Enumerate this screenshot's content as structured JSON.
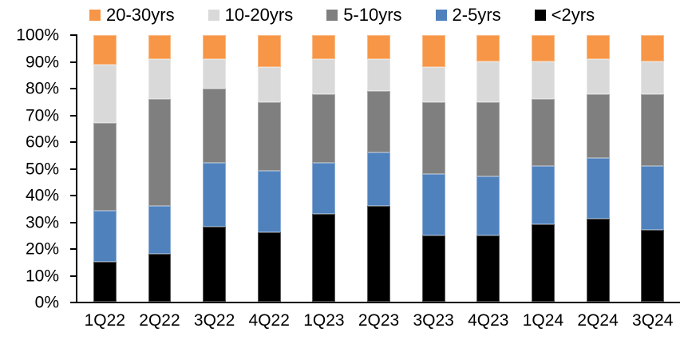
{
  "chart_data": {
    "type": "bar",
    "variant": "stacked-100-percent-column",
    "title": "",
    "xlabel": "",
    "ylabel": "",
    "grid": "off",
    "units": "percent",
    "categories": [
      "1Q22",
      "2Q22",
      "3Q22",
      "4Q22",
      "1Q23",
      "2Q23",
      "3Q23",
      "4Q23",
      "1Q24",
      "2Q24",
      "3Q24"
    ],
    "series": [
      {
        "name": "<2yrs",
        "color": "#000000",
        "values": [
          15,
          18,
          28,
          26,
          33,
          36,
          25,
          25,
          29,
          31,
          27
        ]
      },
      {
        "name": "2-5yrs",
        "color": "#4F81BD",
        "values": [
          19,
          18,
          24,
          23,
          19,
          20,
          23,
          22,
          22,
          23,
          24
        ]
      },
      {
        "name": "5-10yrs",
        "color": "#7F7F7F",
        "values": [
          33,
          40,
          28,
          26,
          26,
          23,
          27,
          28,
          25,
          24,
          27
        ]
      },
      {
        "name": "10-20yrs",
        "color": "#D9D9D9",
        "values": [
          22,
          15,
          11,
          13,
          13,
          12,
          13,
          15,
          14,
          13,
          12
        ]
      },
      {
        "name": "20-30yrs",
        "color": "#F79646",
        "values": [
          11,
          9,
          9,
          12,
          9,
          9,
          12,
          10,
          10,
          9,
          10
        ]
      }
    ],
    "legend": {
      "position": "top",
      "order": [
        "20-30yrs",
        "10-20yrs",
        "5-10yrs",
        "2-5yrs",
        "<2yrs"
      ]
    },
    "y_axis": {
      "min": 0,
      "max": 100,
      "tick_labels_top_to_bottom": [
        "100%",
        "90%",
        "80%",
        "70%",
        "60%",
        "50%",
        "40%",
        "30%",
        "20%",
        "10%",
        "0%"
      ]
    },
    "colors": {
      "axis": "#000000",
      "background": "#FFFFFF"
    }
  }
}
